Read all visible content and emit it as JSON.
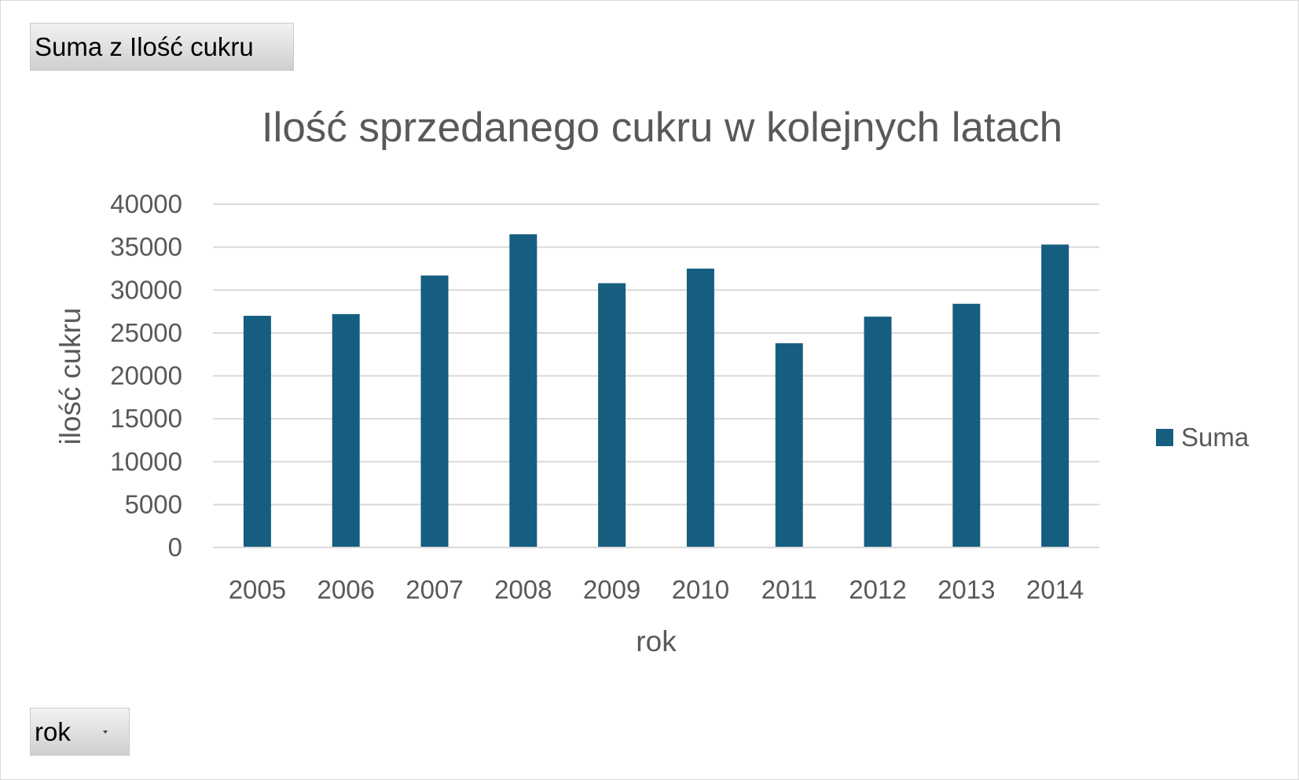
{
  "pivot": {
    "value_field_label": "Suma z Ilość cukru",
    "axis_field_label": "rok"
  },
  "chart_data": {
    "type": "bar",
    "title": "Ilość sprzedanego cukru w kolejnych latach",
    "xlabel": "rok",
    "ylabel": "ilość cukru",
    "categories": [
      "2005",
      "2006",
      "2007",
      "2008",
      "2009",
      "2010",
      "2011",
      "2012",
      "2013",
      "2014"
    ],
    "series": [
      {
        "name": "Suma",
        "color": "#165e80",
        "values": [
          27000,
          27200,
          31700,
          36500,
          30800,
          32500,
          23800,
          26900,
          28400,
          35300
        ]
      }
    ],
    "ylim": [
      0,
      40000
    ],
    "yticks": [
      "0",
      "5000",
      "10000",
      "15000",
      "20000",
      "25000",
      "30000",
      "35000",
      "40000"
    ],
    "grid": true,
    "gridline_color": "#d9d9d9",
    "legend_position": "right"
  }
}
